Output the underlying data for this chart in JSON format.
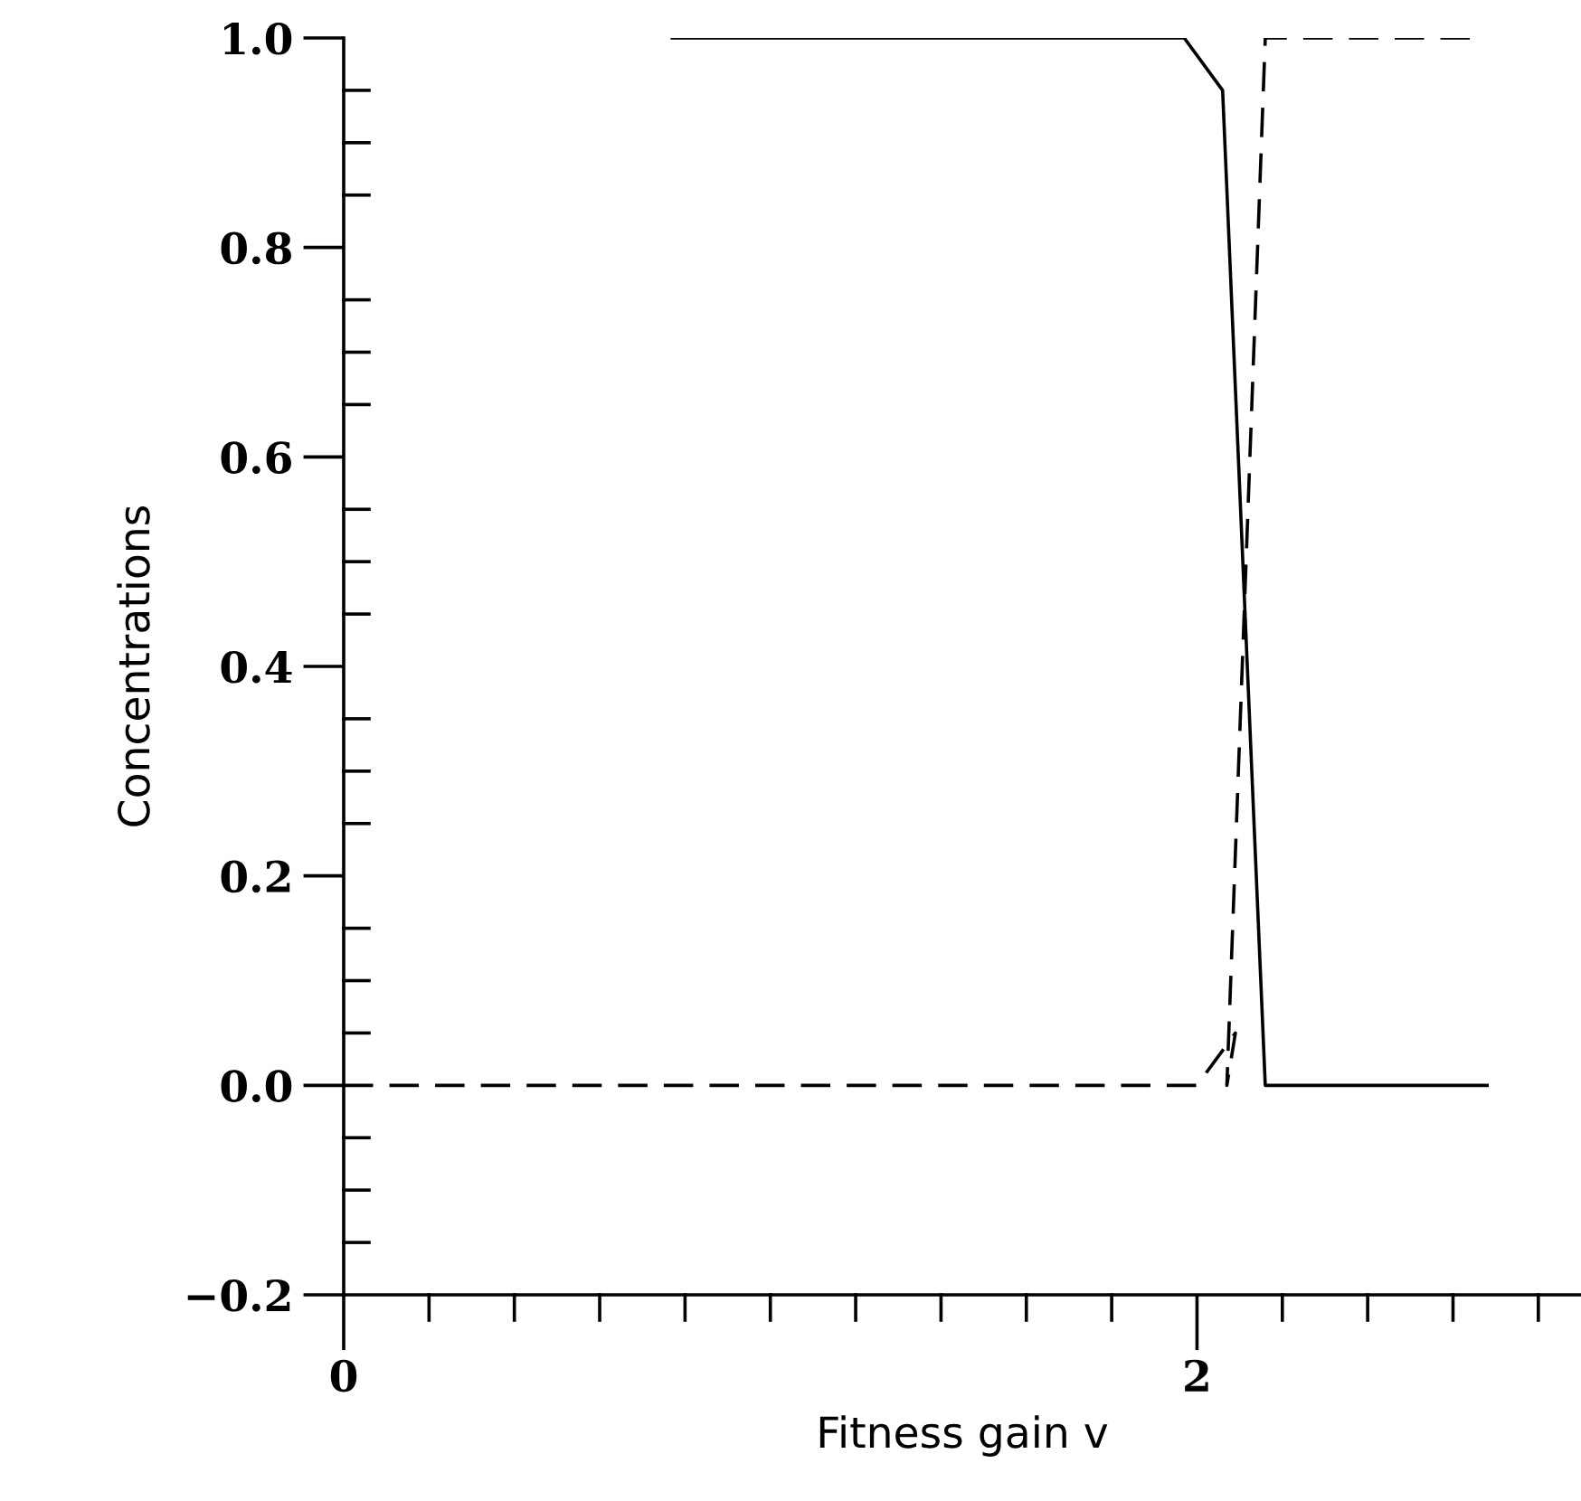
{
  "chart_data": {
    "type": "line",
    "xlabel": "Fitness gain v",
    "ylabel": "Concentrations",
    "series": [
      {
        "color": "#000000",
        "line_style": "solid",
        "x": [
          0.77,
          1.97,
          2.06,
          2.16,
          2.68
        ],
        "values": [
          1.0,
          1.0,
          0.95,
          0.0,
          0.0
        ]
      },
      {
        "color": "#000000",
        "line_style": "dashed",
        "x": [
          0,
          2.0,
          2.09,
          2.07,
          2.16,
          2.65
        ],
        "values": [
          0.0,
          0.0,
          0.05,
          0.0,
          1.0,
          1.0
        ]
      }
    ],
    "xlim": [
      0,
      2.9
    ],
    "ylim": [
      -0.2,
      1.0
    ],
    "xticks": [
      0,
      {
        "value": 0.2,
        "label": null
      },
      {
        "value": 0.4,
        "label": null
      },
      {
        "value": 0.6,
        "label": null
      },
      {
        "value": 0.8,
        "label": null
      },
      {
        "value": 1.0,
        "label": null
      },
      {
        "value": 1.2,
        "label": null
      },
      {
        "value": 1.4,
        "label": null
      },
      {
        "value": 1.6,
        "label": null
      },
      {
        "value": 1.8,
        "label": null
      },
      2,
      {
        "value": 2.2,
        "label": null
      },
      {
        "value": 2.4,
        "label": null
      },
      {
        "value": 2.6,
        "label": null
      },
      {
        "value": 2.8,
        "label": null
      }
    ],
    "yticks": [
      {
        "value": -0.2,
        "label": "−0.2"
      },
      {
        "value": -0.15,
        "label": null
      },
      {
        "value": -0.1,
        "label": null
      },
      {
        "value": -0.05,
        "label": null
      },
      {
        "value": 0,
        "label": "0.0"
      },
      {
        "value": 0.05,
        "label": null
      },
      {
        "value": 0.1,
        "label": null
      },
      {
        "value": 0.15,
        "label": null
      },
      {
        "value": 0.2,
        "label": "0.2"
      },
      {
        "value": 0.25,
        "label": null
      },
      {
        "value": 0.3,
        "label": null
      },
      {
        "value": 0.35,
        "label": null
      },
      {
        "value": 0.4,
        "label": "0.4"
      },
      {
        "value": 0.45,
        "label": null
      },
      {
        "value": 0.5,
        "label": null
      },
      {
        "value": 0.55,
        "label": null
      },
      {
        "value": 0.6,
        "label": "0.6"
      },
      {
        "value": 0.65,
        "label": null
      },
      {
        "value": 0.7,
        "label": null
      },
      {
        "value": 0.75,
        "label": null
      },
      {
        "value": 0.8,
        "label": "0.8"
      },
      {
        "value": 0.85,
        "label": null
      },
      {
        "value": 0.9,
        "label": null
      },
      {
        "value": 0.95,
        "label": null
      },
      {
        "value": 1.0,
        "label": "1.0"
      }
    ],
    "grid": false,
    "legend": false
  }
}
